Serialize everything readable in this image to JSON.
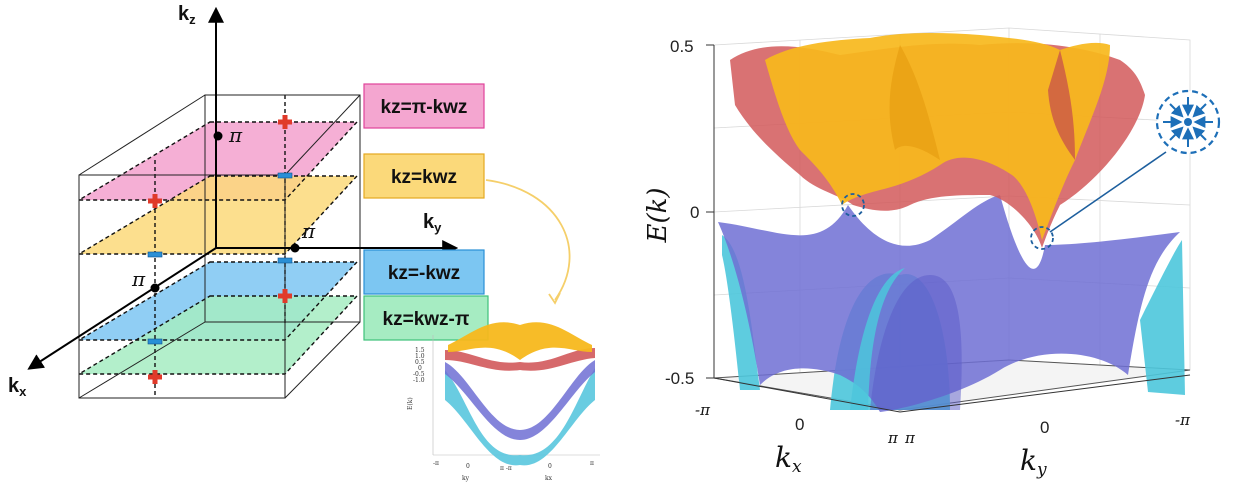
{
  "left_diagram": {
    "axis_kz": "k",
    "axis_kz_sub": "z",
    "axis_ky": "k",
    "axis_ky_sub": "y",
    "axis_kx": "k",
    "axis_kx_sub": "x",
    "pi_labels": [
      "π",
      "π",
      "π"
    ],
    "planes": [
      {
        "label": "kz=π-kwz",
        "color": "#f4a6d0",
        "border": "#e0449a"
      },
      {
        "label": "kz=kwz",
        "color": "#fbd97a",
        "border": "#e4a820"
      },
      {
        "label": "kz=-kwz",
        "color": "#7cc6f2",
        "border": "#2a8fd6"
      },
      {
        "label": "kz=kwz-π",
        "color": "#a6ecc2",
        "border": "#3ec27a"
      }
    ],
    "plus_color": "#e03a2a",
    "minus_color": "#2a8fd6"
  },
  "inset_plot": {
    "ylabel": "E(k)",
    "y_ticks": [
      "1.5",
      "1.0",
      "0.5",
      "0",
      "-0.5",
      "-1.0"
    ],
    "x_ticks": [
      "-π",
      "0",
      "π -π",
      "0",
      "π"
    ],
    "x_labels": [
      "ky",
      "kx"
    ]
  },
  "main_plot": {
    "ylabel": "E(k)",
    "z_ticks": [
      "0.5",
      "0",
      "-0.5"
    ],
    "kx_ticks": [
      "-π",
      "0",
      "π"
    ],
    "ky_ticks": [
      "π",
      "0",
      "-π"
    ],
    "xlabel": "kx",
    "ylabel2": "ky",
    "band_colors": {
      "upper_a": "#f7b81c",
      "upper_b": "#d2595b",
      "lower_a": "#6e6ed4",
      "lower_b": "#4cc6dc"
    },
    "weyl_marker": "sink-icon"
  }
}
